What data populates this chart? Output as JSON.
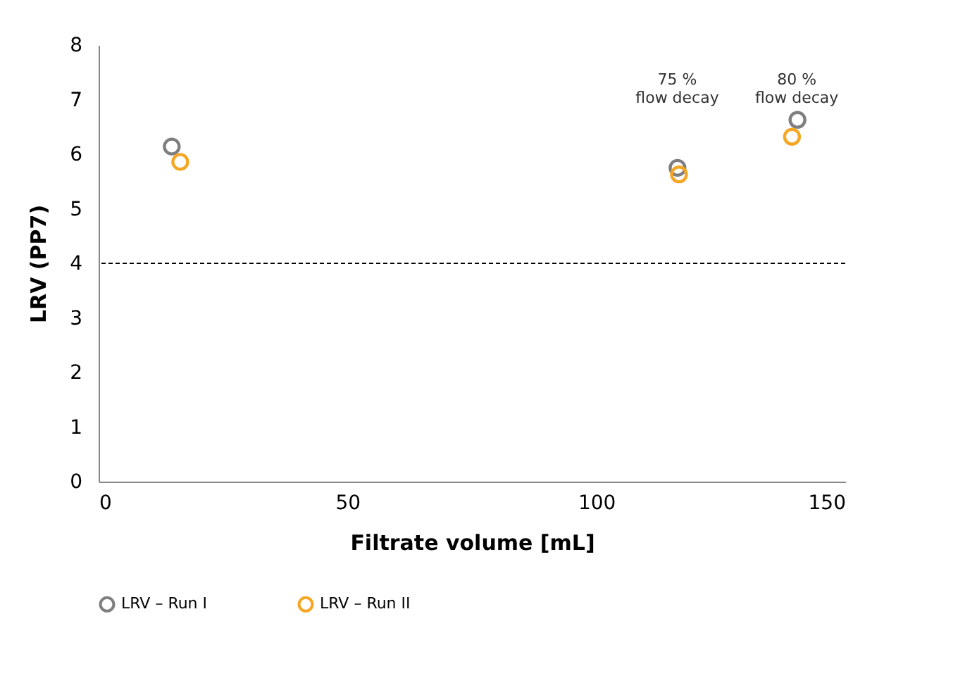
{
  "chart_data": {
    "type": "scatter",
    "xlabel": "Filtrate volume [mL]",
    "ylabel": "LRV (PP7)",
    "xlim": [
      0,
      150
    ],
    "xticks": [
      0,
      50,
      100,
      150
    ],
    "ylim": [
      0,
      8
    ],
    "yticks": [
      0,
      1,
      2,
      3,
      4,
      5,
      6,
      7,
      8
    ],
    "series": [
      {
        "name": "LRV – Run I",
        "color": "#7f7f7f",
        "x": [
          14.7,
          116.3,
          140.4
        ],
        "values": [
          6.14,
          5.75,
          6.63
        ]
      },
      {
        "name": "LRV – Run II",
        "color": "#f5a623",
        "x": [
          16.4,
          116.6,
          139.3
        ],
        "values": [
          5.86,
          5.63,
          6.32
        ]
      }
    ],
    "ref_lines": [
      {
        "axis": "y",
        "value": 4,
        "color": "#000000",
        "line_style": "dashed"
      }
    ],
    "annotations": [
      "75 %\nflow decay",
      "80 %\nflow decay"
    ],
    "marker": "circle",
    "grid": false,
    "legend": "bottom"
  }
}
